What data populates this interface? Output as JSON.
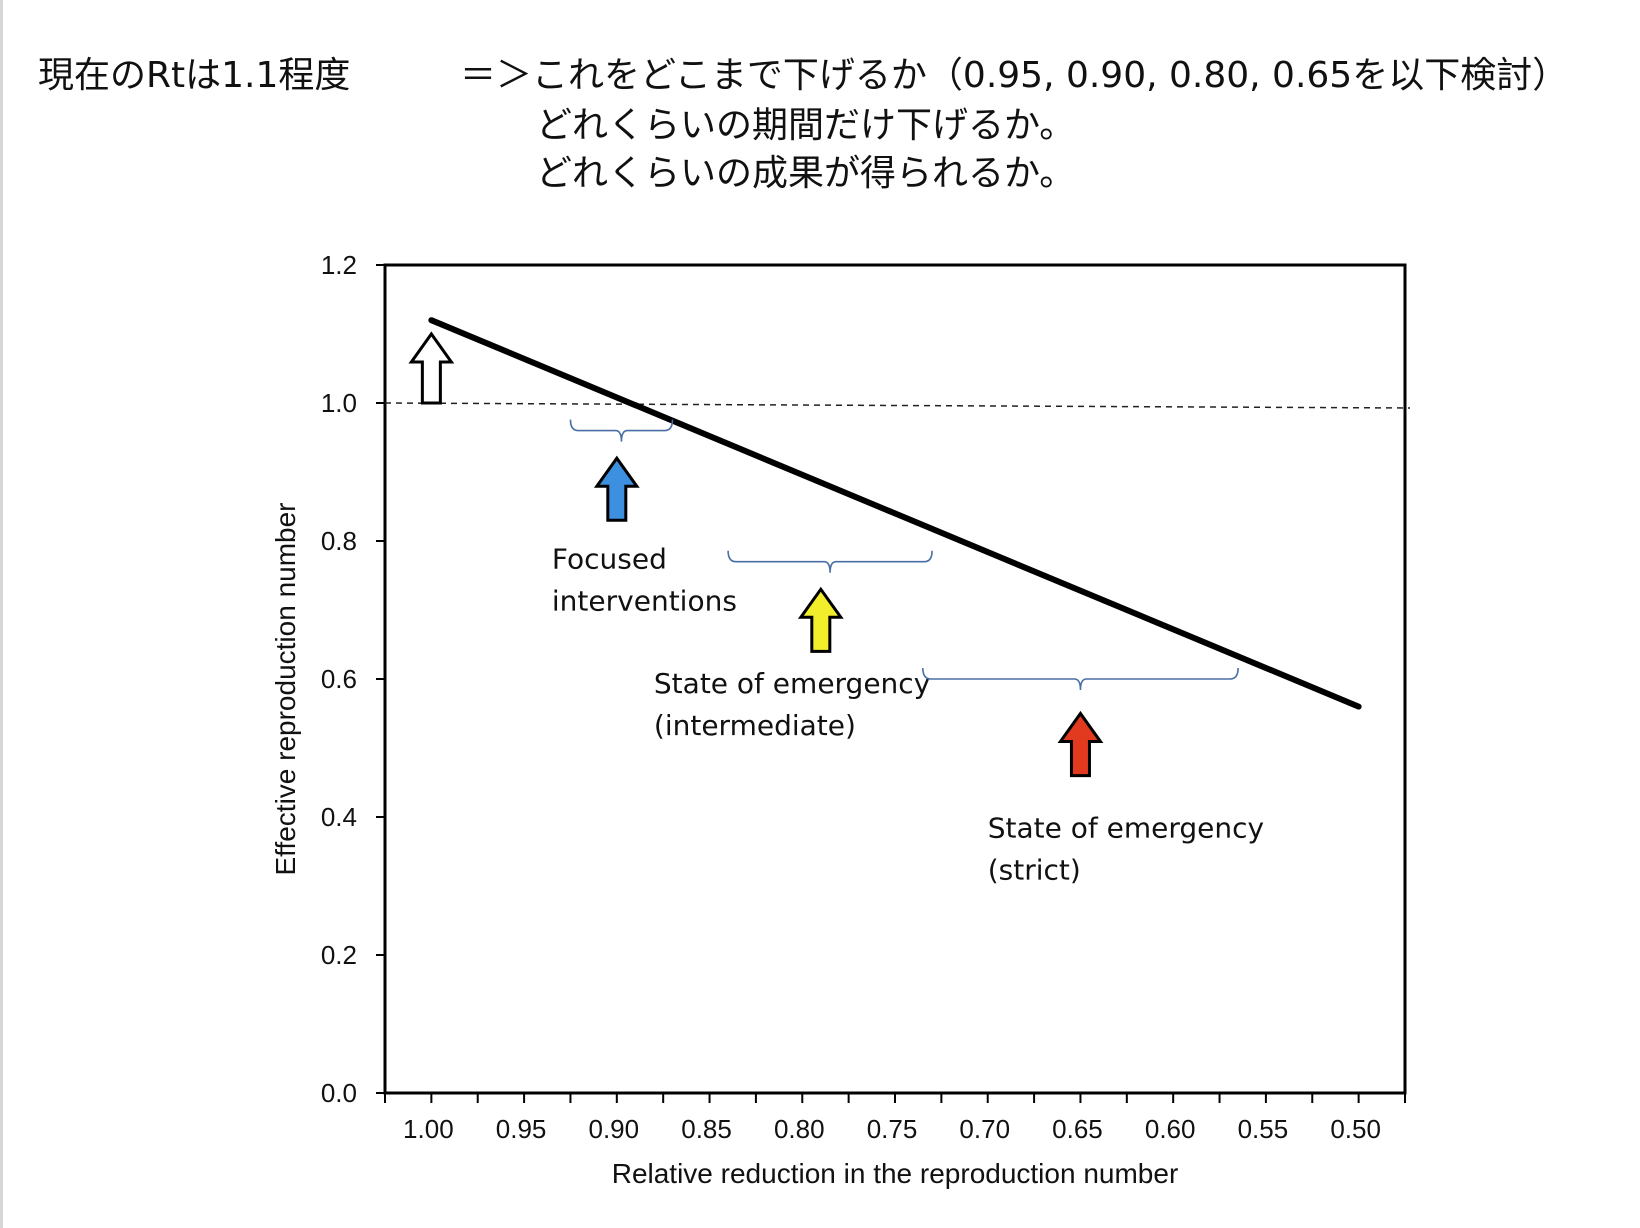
{
  "header": {
    "current": "現在のRtは1.1程度",
    "question": "＝＞これをどこまで下げるか（0.95, 0.90, 0.80, 0.65を以下検討）",
    "line2": "どれくらいの期間だけ下げるか。",
    "line3": "どれくらいの成果が得られるか。"
  },
  "chart_data": {
    "type": "line",
    "title": "",
    "xlabel": "Relative reduction in the reproduction number",
    "ylabel": "Effective reproduction number",
    "xlim": [
      1.025,
      0.475
    ],
    "ylim": [
      0.0,
      1.2
    ],
    "x_reversed": true,
    "x_ticks": [
      1.0,
      0.95,
      0.9,
      0.85,
      0.8,
      0.75,
      0.7,
      0.65,
      0.6,
      0.55,
      0.5
    ],
    "x_tick_labels": [
      "1.00",
      "0.95",
      "0.90",
      "0.85",
      "0.80",
      "0.75",
      "0.70",
      "0.65",
      "0.60",
      "0.55",
      "0.50"
    ],
    "y_ticks": [
      0.0,
      0.2,
      0.4,
      0.6,
      0.8,
      1.0,
      1.2
    ],
    "y_tick_labels": [
      "0.0",
      "0.2",
      "0.4",
      "0.6",
      "0.8",
      "1.0",
      "1.2"
    ],
    "grid": false,
    "series": [
      {
        "x": [
          1.0,
          0.5
        ],
        "y": [
          1.12,
          0.56
        ],
        "color": "#000000"
      }
    ],
    "reference_line": {
      "y": 1.0,
      "style": "dashed"
    },
    "annotations": [
      {
        "kind": "arrow",
        "x": 1.0,
        "y_from": 1.0,
        "y_to": 1.1,
        "color": "#ffffff",
        "stroke": "#000000"
      },
      {
        "kind": "brace",
        "x_from": 0.925,
        "x_to": 0.87,
        "y": 0.96,
        "color": "#4a6fa5"
      },
      {
        "kind": "arrow",
        "x": 0.9,
        "y_from": 0.83,
        "y_to": 0.92,
        "color": "#3d8fe0",
        "stroke": "#000000"
      },
      {
        "kind": "label",
        "x": 0.935,
        "y": 0.76,
        "lines": [
          "Focused",
          "interventions"
        ]
      },
      {
        "kind": "brace",
        "x_from": 0.84,
        "x_to": 0.73,
        "y": 0.77,
        "color": "#4a6fa5"
      },
      {
        "kind": "arrow",
        "x": 0.79,
        "y_from": 0.64,
        "y_to": 0.73,
        "color": "#f2ee2b",
        "stroke": "#000000"
      },
      {
        "kind": "label",
        "x": 0.88,
        "y": 0.58,
        "lines": [
          "State of emergency",
          "(intermediate)"
        ]
      },
      {
        "kind": "brace",
        "x_from": 0.735,
        "x_to": 0.565,
        "y": 0.6,
        "color": "#4a6fa5"
      },
      {
        "kind": "arrow",
        "x": 0.65,
        "y_from": 0.46,
        "y_to": 0.55,
        "color": "#e23a1f",
        "stroke": "#000000"
      },
      {
        "kind": "label",
        "x": 0.7,
        "y": 0.37,
        "lines": [
          "State of emergency",
          "(strict)"
        ]
      }
    ]
  }
}
